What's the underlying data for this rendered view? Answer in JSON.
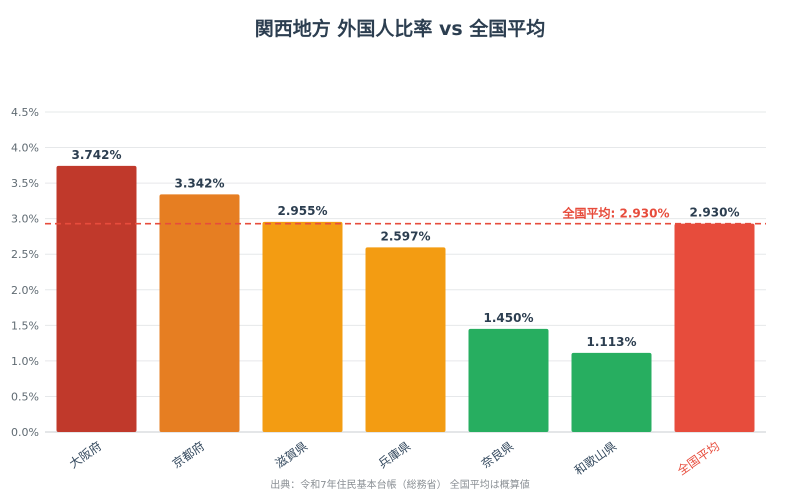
{
  "title": "関西地方 外国人比率 vs 全国平均",
  "source_note": "出典：令和7年住民基本台帳（総務省） 全国平均は概算値",
  "chart_data": {
    "type": "bar",
    "title": "関西地方 外国人比率 vs 全国平均",
    "categories": [
      "大阪府",
      "京都府",
      "滋賀県",
      "兵庫県",
      "奈良県",
      "和歌山県",
      "全国平均"
    ],
    "values": [
      3.742,
      3.342,
      2.955,
      2.597,
      1.45,
      1.113,
      2.93
    ],
    "value_labels": [
      "3.742%",
      "3.342%",
      "2.955%",
      "2.597%",
      "1.450%",
      "1.113%",
      "2.930%"
    ],
    "bar_colors": [
      "#c0392b",
      "#e67e22",
      "#f39c12",
      "#f39c12",
      "#27ae60",
      "#27ae60",
      "#e74c3c"
    ],
    "highlight_category_color": "#e74c3c",
    "ylim": [
      0,
      4.5
    ],
    "yticks": [
      "0.0%",
      "0.5%",
      "1.0%",
      "1.5%",
      "2.0%",
      "2.5%",
      "3.0%",
      "3.5%",
      "4.0%",
      "4.5%"
    ],
    "grid": true,
    "reference_line": {
      "value": 2.93,
      "label": "全国平均: 2.930%",
      "color": "#e74c3c",
      "style": "dashed"
    }
  }
}
